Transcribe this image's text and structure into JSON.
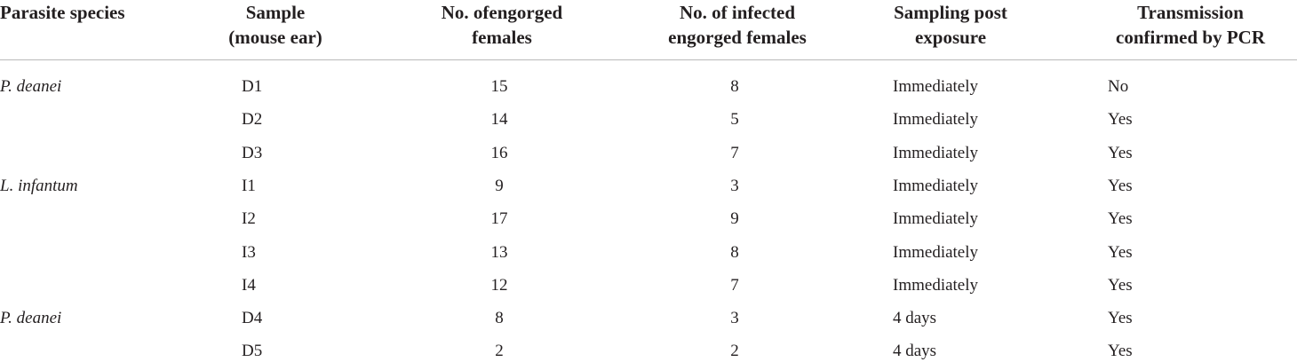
{
  "table": {
    "header": [
      [
        "Parasite species"
      ],
      [
        "Sample",
        "(mouse ear)"
      ],
      [
        "No. ofengorged",
        "females"
      ],
      [
        "No. of infected",
        "engorged females"
      ],
      [
        "Sampling post",
        "exposure"
      ],
      [
        "Transmission",
        "confirmed by PCR"
      ]
    ],
    "rows": [
      [
        "P. deanei",
        "D1",
        15,
        8,
        "Immediately",
        "No"
      ],
      [
        null,
        "D2",
        14,
        5,
        "Immediately",
        "Yes"
      ],
      [
        null,
        "D3",
        16,
        7,
        "Immediately",
        "Yes"
      ],
      [
        "L. infantum",
        "I1",
        9,
        3,
        "Immediately",
        "Yes"
      ],
      [
        null,
        "I2",
        17,
        9,
        "Immediately",
        "Yes"
      ],
      [
        null,
        "I3",
        13,
        8,
        "Immediately",
        "Yes"
      ],
      [
        null,
        "I4",
        12,
        7,
        "Immediately",
        "Yes"
      ],
      [
        "P. deanei",
        "D4",
        8,
        3,
        "4 days",
        "Yes"
      ],
      [
        null,
        "D5",
        2,
        2,
        "4 days",
        "Yes"
      ]
    ]
  }
}
